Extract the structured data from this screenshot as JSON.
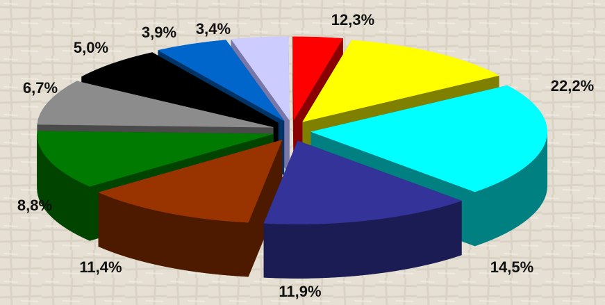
{
  "chart_data": {
    "type": "pie",
    "title": "",
    "legend": "none",
    "exploded": true,
    "three_d": true,
    "slices": [
      {
        "label": "12,3%",
        "value": 12.3,
        "color": "#ffff00",
        "side_color": "#808000"
      },
      {
        "label": "22,2%",
        "value": 22.2,
        "color": "#00ffff",
        "side_color": "#008080"
      },
      {
        "label": "14,5%",
        "value": 14.5,
        "color": "#333399",
        "side_color": "#1c1c55"
      },
      {
        "label": "11,9%",
        "value": 11.9,
        "color": "#993300",
        "side_color": "#4d1a00"
      },
      {
        "label": "11,4%",
        "value": 11.4,
        "color": "#007a00",
        "side_color": "#004400"
      },
      {
        "label": "8,8%",
        "value": 8.8,
        "color": "#8c8c8c",
        "side_color": "#4a4a4a"
      },
      {
        "label": "6,7%",
        "value": 6.7,
        "color": "#000000",
        "side_color": "#000000"
      },
      {
        "label": "5,0%",
        "value": 5.0,
        "color": "#0066cc",
        "side_color": "#003366"
      },
      {
        "label": "3,9%",
        "value": 3.9,
        "color": "#ccccff",
        "side_color": "#7777aa"
      },
      {
        "label": "3,4%",
        "value": 3.4,
        "color": "#ff0000",
        "side_color": "#880000"
      }
    ]
  }
}
